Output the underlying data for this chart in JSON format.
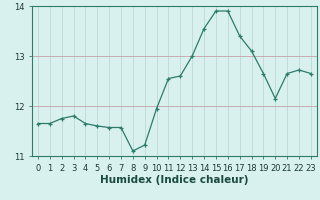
{
  "x": [
    0,
    1,
    2,
    3,
    4,
    5,
    6,
    7,
    8,
    9,
    10,
    11,
    12,
    13,
    14,
    15,
    16,
    17,
    18,
    19,
    20,
    21,
    22,
    23
  ],
  "y": [
    11.65,
    11.65,
    11.75,
    11.8,
    11.65,
    11.6,
    11.57,
    11.57,
    11.1,
    11.22,
    11.95,
    12.55,
    12.6,
    13.0,
    13.55,
    13.9,
    13.9,
    13.4,
    13.1,
    12.65,
    12.15,
    12.65,
    12.72,
    12.65
  ],
  "xlabel": "Humidex (Indice chaleur)",
  "ylim": [
    11.0,
    14.0
  ],
  "xlim_min": -0.5,
  "xlim_max": 23.5,
  "yticks": [
    11,
    12,
    13,
    14
  ],
  "xticks": [
    0,
    1,
    2,
    3,
    4,
    5,
    6,
    7,
    8,
    9,
    10,
    11,
    12,
    13,
    14,
    15,
    16,
    17,
    18,
    19,
    20,
    21,
    22,
    23
  ],
  "line_color": "#2d7b6b",
  "marker_color": "#2d7b6b",
  "bg_color": "#d8f0ee",
  "grid_color_h": "#c8a0a8",
  "grid_color_v": "#c0d8d5",
  "tick_label_fontsize": 6.0,
  "xlabel_fontsize": 7.5
}
